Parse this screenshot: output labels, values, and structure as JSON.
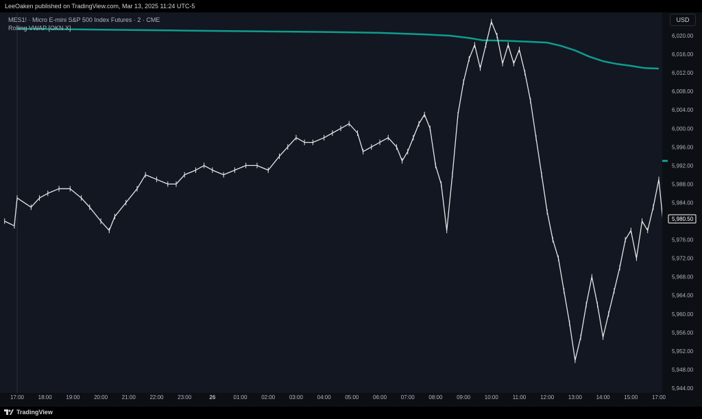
{
  "header": {
    "publish_text": "LeeOaken published on TradingView.com, Mar 13, 2025 11:24 UTC-5"
  },
  "legend": {
    "symbol_line": "MES1! · Micro E-mini S&P 500 Index Futures · 2 · CME",
    "indicator_line": "Rolling VWAP [OKN X]"
  },
  "currency_button": "USD",
  "footer": {
    "logo_text": "TradingView",
    "logo_icon": "tradingview-logo-icon"
  },
  "colors": {
    "background": "#131722",
    "candle": "#e6e6e6",
    "vwap": "#0e9d8e",
    "text": "#b2b5be",
    "last_price_box_border": "#ffffff"
  },
  "chart_data": {
    "type": "line",
    "title": "MES1! · Micro E-mini S&P 500 Index Futures · 2 · CME",
    "xlabel": "",
    "ylabel": "",
    "x_ticks": [
      "17:00",
      "18:00",
      "19:00",
      "20:00",
      "21:00",
      "22:00",
      "23:00",
      "26",
      "01:00",
      "02:00",
      "03:00",
      "04:00",
      "05:00",
      "06:00",
      "07:00",
      "08:00",
      "09:00",
      "10:00",
      "11:00",
      "12:00",
      "13:00",
      "14:00",
      "15:00",
      "17:00"
    ],
    "y_ticks": [
      "6,020.00",
      "6,016.00",
      "6,012.00",
      "6,008.00",
      "6,004.00",
      "6,000.00",
      "5,996.00",
      "5,992.00",
      "5,988.00",
      "5,984.00",
      "5,980.00",
      "5,976.00",
      "5,972.00",
      "5,968.00",
      "5,964.00",
      "5,960.00",
      "5,956.00",
      "5,952.00",
      "5,948.00",
      "5,944.00"
    ],
    "ylim": [
      5944,
      6024
    ],
    "xlim": [
      -0.5,
      23.15
    ],
    "last_price_label": "5,980.50",
    "last_price": 5980.5,
    "series": [
      {
        "name": "MES1!",
        "x": [
          -0.45,
          -0.1,
          0,
          0.5,
          0.8,
          1.1,
          1.5,
          1.9,
          2.3,
          2.6,
          3.0,
          3.3,
          3.5,
          3.9,
          4.3,
          4.6,
          5.0,
          5.4,
          5.7,
          6.0,
          6.4,
          6.7,
          7.0,
          7.4,
          7.8,
          8.2,
          8.6,
          9.0,
          9.4,
          9.7,
          10.0,
          10.3,
          10.6,
          11.0,
          11.3,
          11.6,
          11.9,
          12.2,
          12.4,
          12.7,
          13.0,
          13.3,
          13.6,
          13.8,
          14.0,
          14.2,
          14.4,
          14.6,
          14.8,
          15.0,
          15.2,
          15.4,
          15.6,
          15.8,
          16.0,
          16.2,
          16.4,
          16.6,
          16.8,
          17.0,
          17.2,
          17.4,
          17.6,
          17.8,
          18.0,
          18.2,
          18.4,
          18.6,
          18.8,
          19.0,
          19.2,
          19.4,
          19.6,
          19.8,
          20.0,
          20.2,
          20.4,
          20.6,
          20.8,
          21.0,
          21.2,
          21.4,
          21.6,
          21.8,
          22.0,
          22.2,
          22.4,
          22.6,
          22.8,
          23.0,
          23.15
        ],
        "values": [
          5980,
          5979,
          5985,
          5983,
          5985,
          5986,
          5987,
          5987,
          5985,
          5983,
          5980,
          5978,
          5981,
          5984,
          5987,
          5990,
          5989,
          5988,
          5988,
          5990,
          5991,
          5992,
          5991,
          5990,
          5991,
          5992,
          5992,
          5991,
          5994,
          5996,
          5998,
          5997,
          5997,
          5998,
          5999,
          6000,
          6001,
          5999,
          5995,
          5996,
          5997,
          5998,
          5996,
          5993,
          5995,
          5998,
          6001,
          6003,
          6000,
          5992,
          5988,
          5978,
          5990,
          6003,
          6010,
          6015,
          6018,
          6013,
          6018,
          6023,
          6020,
          6014,
          6018,
          6014,
          6017,
          6012,
          6006,
          5998,
          5990,
          5982,
          5976,
          5972,
          5965,
          5958,
          5950,
          5955,
          5962,
          5968,
          5962,
          5955,
          5960,
          5965,
          5970,
          5976,
          5978,
          5972,
          5980,
          5978,
          5983,
          5989,
          5980
        ]
      },
      {
        "name": "Rolling VWAP [OKN X]",
        "x": [
          0,
          3,
          6,
          9,
          11,
          13,
          14.5,
          15.5,
          16.2,
          16.7,
          17.5,
          18.3,
          19.0,
          19.5,
          20.0,
          20.5,
          21.0,
          21.5,
          22.0,
          22.5,
          23.0
        ],
        "values": [
          6021.5,
          6021.3,
          6021.1,
          6020.9,
          6020.8,
          6020.6,
          6020.3,
          6020.0,
          6019.5,
          6019.0,
          6018.9,
          6018.7,
          6018.5,
          6017.8,
          6016.8,
          6015.5,
          6014.5,
          6013.9,
          6013.5,
          6013.0,
          6012.9
        ]
      }
    ],
    "grid": false,
    "legend": "top-left"
  }
}
